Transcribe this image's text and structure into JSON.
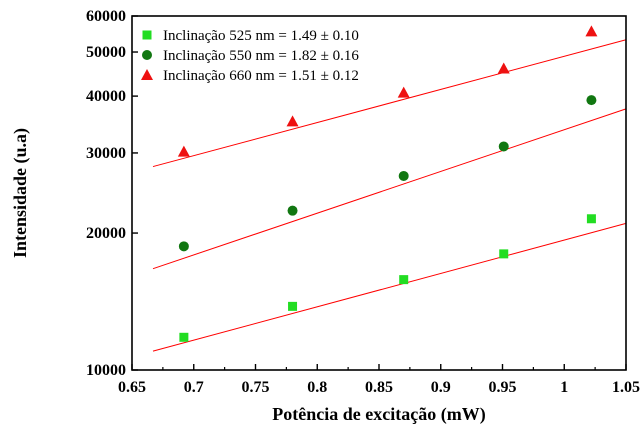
{
  "chart_data": {
    "type": "scatter",
    "xlabel": "Potência de excitação (mW)",
    "ylabel": "Intensidade (u.a)",
    "xlim": [
      0.65,
      1.05
    ],
    "ylim": [
      10000,
      60000
    ],
    "yscale": "log",
    "x_ticks": [
      "0.65",
      "0.7",
      "0.75",
      "0.8",
      "0.85",
      "0.9",
      "0.95",
      "1",
      "1.05"
    ],
    "y_ticks": [
      "10000",
      "20000",
      "30000",
      "40000",
      "50000",
      "60000"
    ],
    "grid": false,
    "legend_position": "top-left",
    "fit_color": "#ff0000",
    "series": [
      {
        "name": "Inclinação 525 nm = 1.49 ± 0.10",
        "marker": "square",
        "color": "#22dd22",
        "x": [
          0.692,
          0.78,
          0.87,
          0.951,
          1.022
        ],
        "y": [
          11800,
          13800,
          15800,
          18000,
          21500
        ],
        "fit": {
          "x": [
            0.667,
            1.05
          ],
          "y": [
            11000,
            21000
          ]
        }
      },
      {
        "name": "Inclinação  550 nm = 1.82 ± 0.16",
        "marker": "circle",
        "color": "#117711",
        "x": [
          0.692,
          0.78,
          0.87,
          0.951,
          1.022
        ],
        "y": [
          18700,
          22400,
          26700,
          31000,
          39200
        ],
        "fit": {
          "x": [
            0.667,
            1.05
          ],
          "y": [
            16700,
            37500
          ]
        }
      },
      {
        "name": "Inclinação  660 nm = 1.51 ± 0.12",
        "marker": "triangle",
        "color": "#ee1111",
        "x": [
          0.692,
          0.78,
          0.87,
          0.951,
          1.022
        ],
        "y": [
          30200,
          35200,
          40700,
          46000,
          55500
        ],
        "fit": {
          "x": [
            0.667,
            1.05
          ],
          "y": [
            28000,
            53200
          ]
        }
      }
    ]
  }
}
